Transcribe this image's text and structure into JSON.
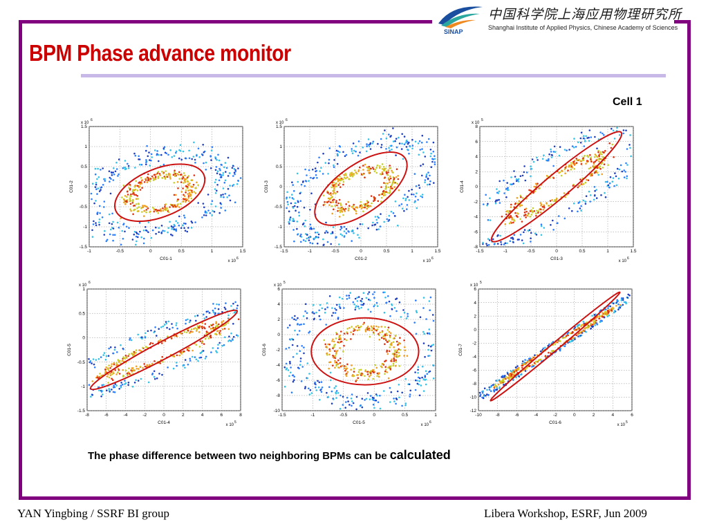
{
  "slide": {
    "title": "BPM Phase advance monitor",
    "institute_cn": "中国科学院上海应用物理研究所",
    "institute_en": "Shanghai Institute of Applied Physics, Chinese Academy of Sciences",
    "logo_text": "SINAP",
    "cell_label": "Cell 1",
    "caption_main": "The phase difference between two neighboring BPMs can be ",
    "caption_emph": "calculated",
    "footer_left": "YAN Yingbing / SSRF BI group",
    "footer_right": "Libera Workshop, ESRF, Jun 2009"
  },
  "colors": {
    "frame": "#800080",
    "title": "#cc0000",
    "title_rule": "#c8b8e8",
    "ellipse": "#cc1111",
    "points_outer": [
      "#1f3fbf",
      "#2a7fff",
      "#33c3e8"
    ],
    "points_inner": [
      "#c8d02a",
      "#f0a020",
      "#dd3311"
    ]
  },
  "chart_data": [
    {
      "type": "scatter",
      "xlabel": "C01-1",
      "ylabel": "C01-2",
      "xlim": [
        -1,
        1.5
      ],
      "ylim": [
        -1.5,
        1.5
      ],
      "xticks": [
        "-1",
        "-0.5",
        "0",
        "0.5",
        "1",
        "1.5"
      ],
      "yticks": [
        "-1.5",
        "-1",
        "-0.5",
        "0",
        "0.5",
        "1",
        "1.5"
      ],
      "x_exp": "x 10",
      "x_exp_pow": "6",
      "y_exp": "x 10",
      "y_exp_pow": "6",
      "center": [
        0.15,
        -0.15
      ],
      "outer_radii": [
        0.95,
        0.62
      ],
      "inner_radii": [
        0.42,
        0.28
      ],
      "tilt_deg": 22,
      "fit_ellipse": {
        "center": [
          0.15,
          -0.15
        ],
        "radii": [
          0.62,
          0.4
        ],
        "tilt_deg": 22
      },
      "correlation": "elliptical, weak positive",
      "grid": true
    },
    {
      "type": "scatter",
      "xlabel": "C01-2",
      "ylabel": "C01-3",
      "xlim": [
        -1.5,
        1.5
      ],
      "ylim": [
        -1.5,
        1.5
      ],
      "xticks": [
        "-1.5",
        "-1",
        "-0.5",
        "0",
        "0.5",
        "1",
        "1.5"
      ],
      "yticks": [
        "-1.5",
        "-1",
        "-0.5",
        "0",
        "0.5",
        "1",
        "1.5"
      ],
      "x_exp": "x 10",
      "x_exp_pow": "6",
      "y_exp": "x 10",
      "y_exp_pow": "6",
      "center": [
        0.0,
        -0.05
      ],
      "outer_radii": [
        1.05,
        0.62
      ],
      "inner_radii": [
        0.45,
        0.28
      ],
      "tilt_deg": 35,
      "fit_ellipse": {
        "center": [
          0.0,
          -0.05
        ],
        "radii": [
          0.7,
          0.4
        ],
        "tilt_deg": 35
      },
      "correlation": "elliptical, positive",
      "grid": true
    },
    {
      "type": "scatter",
      "xlabel": "C01-3",
      "ylabel": "C01-4",
      "xlim": [
        -1.5,
        1.5
      ],
      "ylim": [
        -8,
        8
      ],
      "xticks": [
        "-1.5",
        "-1",
        "-0.5",
        "0",
        "0.5",
        "1",
        "1.5"
      ],
      "yticks": [
        "-8",
        "-6",
        "-4",
        "-2",
        "0",
        "2",
        "4",
        "6",
        "8"
      ],
      "x_exp": "x 10",
      "x_exp_pow": "6",
      "y_exp": "x 10",
      "y_exp_pow": "5",
      "center": [
        0.0,
        0.0
      ],
      "outer_radii": [
        1.5,
        0.45
      ],
      "inner_radii": [
        0.75,
        0.18
      ],
      "tilt_deg": 40,
      "fit_ellipse": {
        "center": [
          0.0,
          0.0
        ],
        "radii": [
          1.1,
          0.2
        ],
        "tilt_deg": 40
      },
      "correlation": "narrow, strong positive",
      "grid": true
    },
    {
      "type": "scatter",
      "xlabel": "C01-4",
      "ylabel": "C01-5",
      "xlim": [
        -8,
        8
      ],
      "ylim": [
        -1.5,
        1
      ],
      "xticks": [
        "-8",
        "-6",
        "-4",
        "-2",
        "0",
        "2",
        "4",
        "6",
        "8"
      ],
      "yticks": [
        "-1.5",
        "-1",
        "-0.5",
        "0",
        "0.5",
        "1"
      ],
      "x_exp": "x 10",
      "x_exp_pow": "5",
      "y_exp": "x 10",
      "y_exp_pow": "6",
      "center": [
        0.0,
        -0.25
      ],
      "outer_radii": [
        1.5,
        0.32
      ],
      "inner_radii": [
        0.8,
        0.15
      ],
      "tilt_deg": 28,
      "fit_ellipse": {
        "center": [
          0.0,
          -0.25
        ],
        "radii": [
          1.08,
          0.14
        ],
        "tilt_deg": 28
      },
      "correlation": "narrow, strong positive",
      "grid": true
    },
    {
      "type": "scatter",
      "xlabel": "C01-5",
      "ylabel": "C01-6",
      "xlim": [
        -1.5,
        1
      ],
      "ylim": [
        -10,
        6
      ],
      "xticks": [
        "-1.5",
        "-1",
        "-0.5",
        "0",
        "0.5",
        "1"
      ],
      "yticks": [
        "-10",
        "-8",
        "-6",
        "-4",
        "-2",
        "0",
        "2",
        "4",
        "6"
      ],
      "x_exp": "x 10",
      "x_exp_pow": "6",
      "y_exp": "x 10",
      "y_exp_pow": "5",
      "center": [
        -0.15,
        -2.2
      ],
      "outer_radii": [
        0.95,
        0.85
      ],
      "inner_radii": [
        0.42,
        0.38
      ],
      "tilt_deg": 0,
      "fit_ellipse": {
        "center": [
          -0.15,
          -2.2
        ],
        "radii": [
          0.7,
          0.55
        ],
        "tilt_deg": 0
      },
      "correlation": "near-circular, uncorrelated",
      "grid": true
    },
    {
      "type": "scatter",
      "xlabel": "C01-6",
      "ylabel": "C01-7",
      "xlim": [
        -10,
        6
      ],
      "ylim": [
        -12,
        6
      ],
      "xticks": [
        "-10",
        "-8",
        "-6",
        "-4",
        "-2",
        "0",
        "2",
        "4",
        "6"
      ],
      "yticks": [
        "-12",
        "-10",
        "-8",
        "-6",
        "-4",
        "-2",
        "0",
        "2",
        "4",
        "6"
      ],
      "x_exp": "x 10",
      "x_exp_pow": "5",
      "y_exp": "x 10",
      "y_exp_pow": "5",
      "center": [
        -2.0,
        -2.5
      ],
      "outer_radii": [
        1.6,
        0.07
      ],
      "inner_radii": [
        0.9,
        0.04
      ],
      "tilt_deg": 40,
      "fit_ellipse": {
        "center": [
          -2.0,
          -2.5
        ],
        "radii": [
          1.1,
          0.06
        ],
        "tilt_deg": 40
      },
      "correlation": "very narrow, strong positive",
      "grid": true
    }
  ]
}
